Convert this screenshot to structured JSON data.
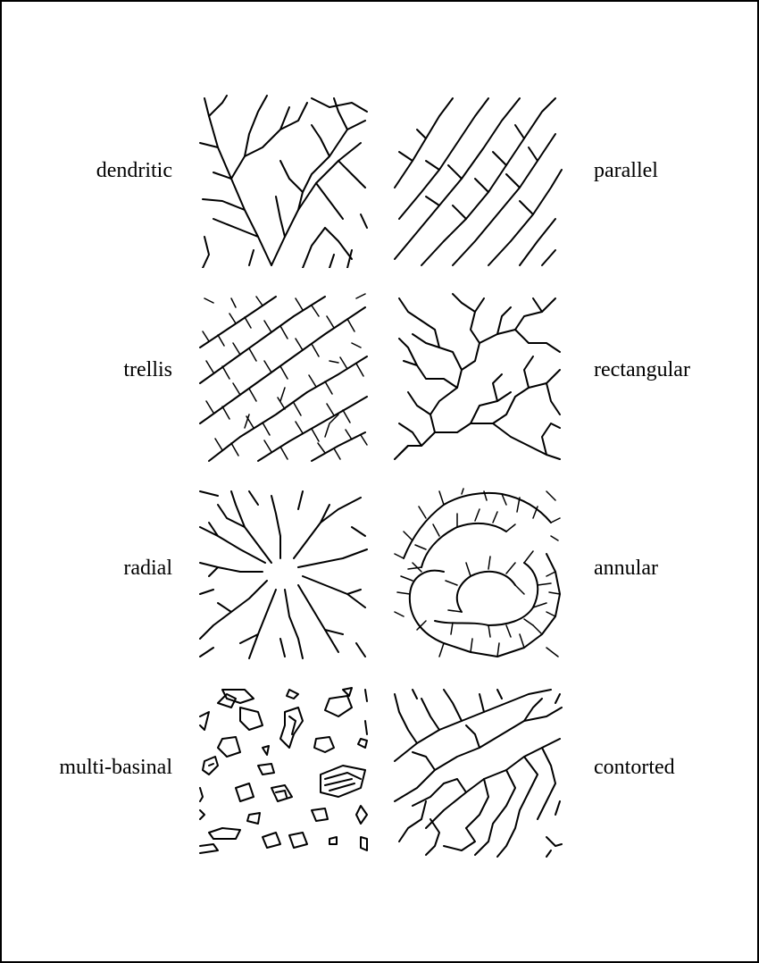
{
  "patterns": {
    "dendritic": "dendritic",
    "parallel": "parallel",
    "trellis": "trellis",
    "rectangular": "rectangular",
    "radial": "radial",
    "annular": "annular",
    "multi_basinal": "multi-basinal",
    "contorted": "contorted"
  }
}
